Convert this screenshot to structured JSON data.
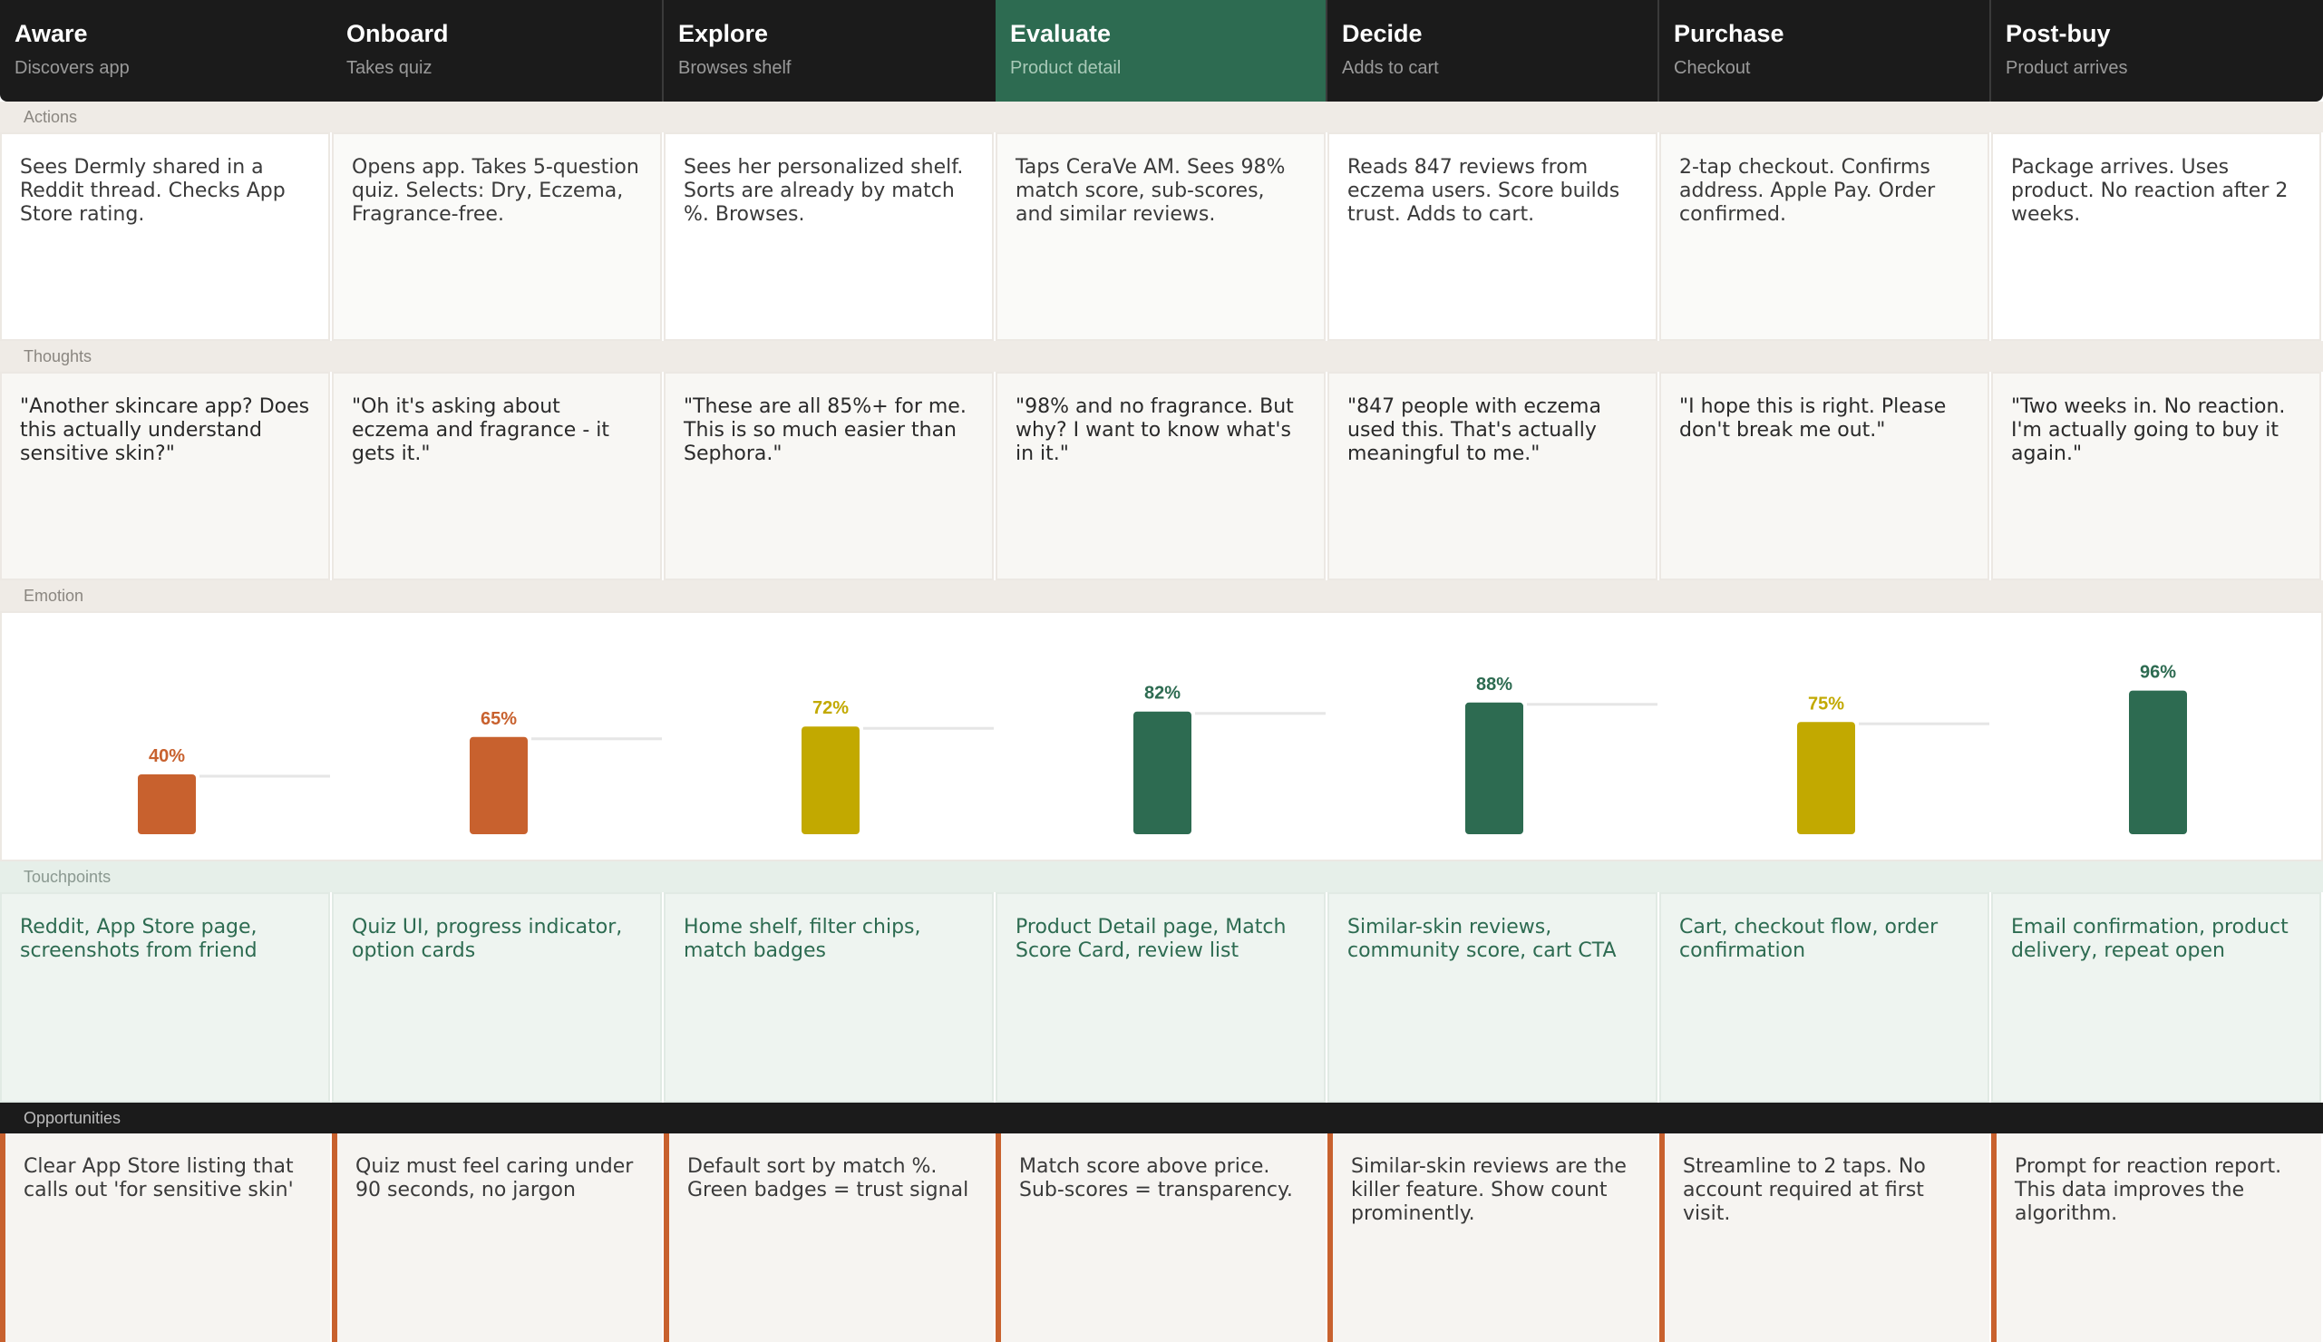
{
  "stages": [
    {
      "title": "Aware",
      "subtitle": "Discovers app"
    },
    {
      "title": "Onboard",
      "subtitle": "Takes quiz"
    },
    {
      "title": "Explore",
      "subtitle": "Browses shelf"
    },
    {
      "title": "Evaluate",
      "subtitle": "Product detail"
    },
    {
      "title": "Decide",
      "subtitle": "Adds to cart"
    },
    {
      "title": "Purchase",
      "subtitle": "Checkout"
    },
    {
      "title": "Post-buy",
      "subtitle": "Product arrives"
    }
  ],
  "active_stage": "Evaluate",
  "rows": {
    "actions": {
      "label": "Actions",
      "cells": [
        "Sees Dermly shared in a Reddit thread. Checks App Store rating.",
        "Opens app. Takes 5-question quiz. Selects: Dry, Eczema, Fragrance-free.",
        "Sees her personalized shelf. Sorts are already by match %. Browses.",
        "Taps CeraVe AM. Sees 98% match score, sub-scores, and similar reviews.",
        "Reads 847 reviews from eczema users. Score builds trust. Adds to cart.",
        "2-tap checkout. Confirms address. Apple Pay. Order confirmed.",
        "Package arrives. Uses product. No reaction after 2 weeks."
      ]
    },
    "thoughts": {
      "label": "Thoughts",
      "cells": [
        "\"Another skincare app? Does this actually understand sensitive skin?\"",
        "\"Oh it's asking about eczema and fragrance - it gets it.\"",
        "\"These are all 85%+ for me. This is so much easier than Sephora.\"",
        "\"98% and no fragrance. But why? I want to know what's in it.\"",
        "\"847 people with eczema used this. That's actually meaningful to me.\"",
        "\"I hope this is right. Please don't break me out.\"",
        "\"Two weeks in. No reaction. I'm actually going to buy it again.\""
      ]
    },
    "emotion": {
      "label": "Emotion"
    },
    "touchpoints": {
      "label": "Touchpoints",
      "cells": [
        "Reddit, App Store page, screenshots from friend",
        "Quiz UI, progress indicator, option cards",
        "Home shelf, filter chips, match badges",
        "Product Detail page, Match Score Card, review list",
        "Similar-skin reviews, community score, cart CTA",
        "Cart, checkout flow, order confirmation",
        "Email confirmation, product delivery, repeat open"
      ]
    },
    "opportunities": {
      "label": "Opportunities",
      "cells": [
        "Clear App Store listing that calls out 'for sensitive skin'",
        "Quiz must feel caring under 90 seconds, no jargon",
        "Default sort by match %. Green badges = trust signal",
        "Match score above price. Sub-scores = transparency.",
        "Similar-skin reviews are the killer feature. Show count prominently.",
        "Streamline to 2 taps. No account required at first visit.",
        "Prompt for reaction report. This data improves the algorithm."
      ]
    }
  },
  "colors": {
    "low": "#c8612e",
    "mid": "#c2a900",
    "high": "#2d6b51",
    "accent": "#2d6b51"
  },
  "chart_data": {
    "type": "bar",
    "categories": [
      "Aware",
      "Onboard",
      "Explore",
      "Evaluate",
      "Decide",
      "Purchase",
      "Post-buy"
    ],
    "values": [
      40,
      65,
      72,
      82,
      88,
      75,
      96
    ],
    "value_labels": [
      "40%",
      "65%",
      "72%",
      "82%",
      "88%",
      "75%",
      "96%"
    ],
    "bar_colors": [
      "#c8612e",
      "#c8612e",
      "#c2a900",
      "#2d6b51",
      "#2d6b51",
      "#c2a900",
      "#2d6b51"
    ],
    "ylim": [
      0,
      100
    ],
    "grid": false,
    "legend": "none"
  }
}
